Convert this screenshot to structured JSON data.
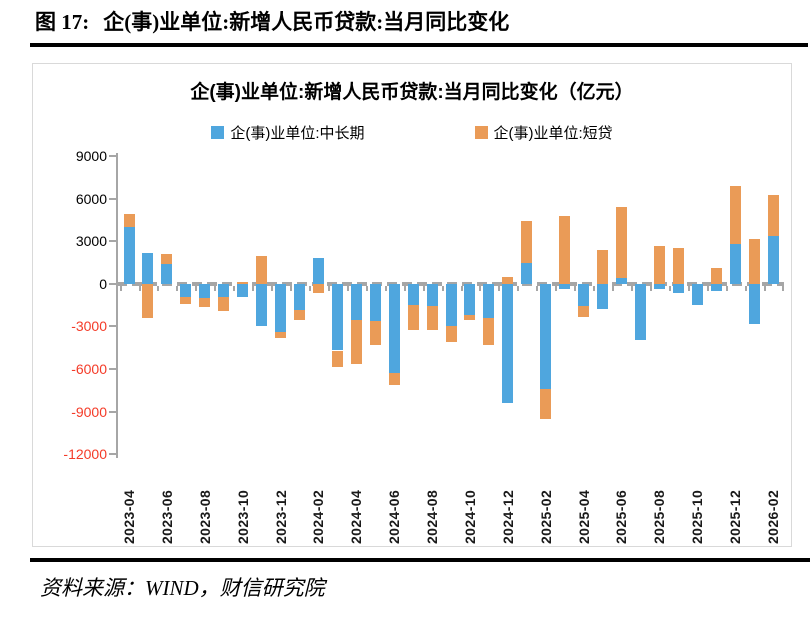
{
  "page": {
    "figure_label": "图 17:",
    "figure_title": "企(事)业单位:新增人民币贷款:当月同比变化",
    "source": "资料来源：WIND，财信研究院"
  },
  "chart_data": {
    "type": "bar",
    "stacked": true,
    "title": "企(事)业单位:新增人民币贷款:当月同比变化（亿元）",
    "unit": "亿元",
    "legend_position": "top",
    "grid": false,
    "ylim": [
      -12000,
      9000
    ],
    "y_ticks": [
      9000,
      6000,
      3000,
      0,
      -3000,
      -6000,
      -9000,
      -12000
    ],
    "positive_tick_color": "#000000",
    "negative_tick_color": "#F43B28",
    "axis_color": "#A6A6A6",
    "frame_color": "#D9D9D9",
    "categories": [
      "2023-04",
      "2023-05",
      "2023-06",
      "2023-07",
      "2023-08",
      "2023-09",
      "2023-10",
      "2023-11",
      "2023-12",
      "2024-01",
      "2024-02",
      "2024-03",
      "2024-04",
      "2024-05",
      "2024-06",
      "2024-07",
      "2024-08",
      "2024-09",
      "2024-10",
      "2024-11",
      "2024-12",
      "2025-01",
      "2025-02",
      "2025-03",
      "2025-04",
      "2025-05",
      "2025-06",
      "2025-07",
      "2025-08",
      "2025-09",
      "2025-10",
      "2025-11",
      "2025-12",
      "2026-01",
      "2026-02"
    ],
    "x_tick_labels": [
      "2023-04",
      "2023-06",
      "2023-08",
      "2023-10",
      "2023-12",
      "2024-02",
      "2024-04",
      "2024-06",
      "2024-08",
      "2024-10",
      "2024-12",
      "2025-02",
      "2025-04",
      "2025-06",
      "2025-08",
      "2025-10",
      "2025-12",
      "2026-02"
    ],
    "series": [
      {
        "name": "企(事)业单位:中长期",
        "key": "medium-long-term",
        "color": "#4FA6DE",
        "values": [
          4000,
          2200,
          1400,
          -900,
          -1000,
          -950,
          -900,
          -2950,
          -3400,
          -1850,
          1850,
          -4700,
          -2550,
          -2600,
          -6250,
          -1500,
          -1550,
          -2950,
          -2200,
          -2400,
          -8400,
          1450,
          -7400,
          -350,
          -1550,
          -1750,
          400,
          -3950,
          -350,
          -650,
          -1500,
          -500,
          2800,
          -2850,
          3400
        ]
      },
      {
        "name": "企(事)业单位:短贷",
        "key": "short-term",
        "color": "#EA9B57",
        "values": [
          900,
          -2400,
          700,
          -500,
          -600,
          -1000,
          150,
          1950,
          -450,
          -700,
          -650,
          -1150,
          -3100,
          -1750,
          -900,
          -1750,
          -1700,
          -1150,
          -350,
          -1900,
          450,
          2950,
          -2100,
          4750,
          -800,
          2400,
          5000,
          0,
          2650,
          2550,
          0,
          1150,
          4100,
          3150,
          2850
        ]
      }
    ]
  }
}
